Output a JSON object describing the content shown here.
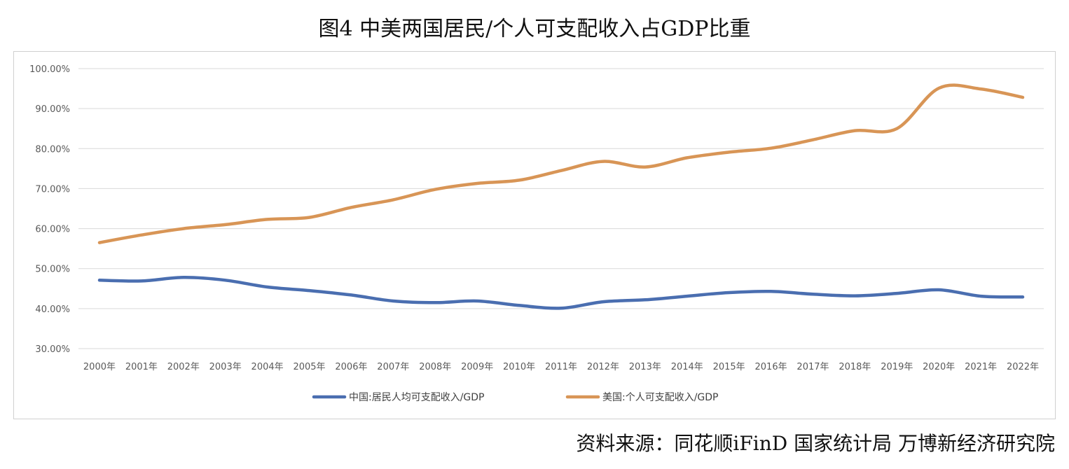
{
  "figure": {
    "title": "图4 中美两国居民/个人可支配收入占GDP比重",
    "source": "资料来源：同花顺iFinD 国家统计局 万博新经济研究院"
  },
  "chart_data": {
    "type": "line",
    "title": "图4 中美两国居民/个人可支配收入占GDP比重",
    "xlabel": "",
    "ylabel": "",
    "ylim": [
      30,
      100
    ],
    "yticks": [
      30,
      40,
      50,
      60,
      70,
      80,
      90,
      100
    ],
    "ytick_labels": [
      "30.00%",
      "40.00%",
      "50.00%",
      "60.00%",
      "70.00%",
      "80.00%",
      "90.00%",
      "100.00%"
    ],
    "grid": true,
    "legend_position": "bottom",
    "categories": [
      "2000年",
      "2001年",
      "2002年",
      "2003年",
      "2004年",
      "2005年",
      "2006年",
      "2007年",
      "2008年",
      "2009年",
      "2010年",
      "2011年",
      "2012年",
      "2013年",
      "2014年",
      "2015年",
      "2016年",
      "2017年",
      "2018年",
      "2019年",
      "2020年",
      "2021年",
      "2022年"
    ],
    "series": [
      {
        "name": "中国:居民人均可支配收入/GDP",
        "color": "#4a6eb0",
        "values": [
          47.1,
          46.9,
          47.8,
          47.1,
          45.4,
          44.5,
          43.4,
          41.9,
          41.5,
          41.9,
          40.8,
          40.1,
          41.7,
          42.2,
          43.1,
          44.0,
          44.3,
          43.6,
          43.2,
          43.8,
          44.7,
          43.1,
          42.9
        ]
      },
      {
        "name": "美国:个人可支配收入/GDP",
        "color": "#d89556",
        "values": [
          56.5,
          58.4,
          60.0,
          61.0,
          62.3,
          62.8,
          65.3,
          67.2,
          69.8,
          71.3,
          72.1,
          74.5,
          76.8,
          75.4,
          77.7,
          79.1,
          80.1,
          82.2,
          84.5,
          85.0,
          95.1,
          94.9,
          92.8
        ]
      }
    ]
  }
}
